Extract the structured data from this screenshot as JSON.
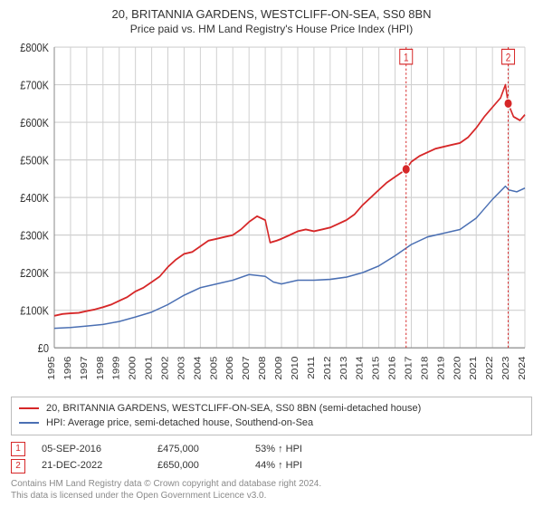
{
  "title": "20, BRITANNIA GARDENS, WESTCLIFF-ON-SEA, SS0 8BN",
  "subtitle": "Price paid vs. HM Land Registry's House Price Index (HPI)",
  "chart": {
    "type": "line",
    "background_color": "#ffffff",
    "grid_color": "#d0d0d0",
    "axis_color": "#888888",
    "x": {
      "min": 1995,
      "max": 2024,
      "ticks": [
        1995,
        1996,
        1997,
        1998,
        1999,
        2000,
        2001,
        2002,
        2003,
        2004,
        2005,
        2006,
        2007,
        2008,
        2009,
        2010,
        2011,
        2012,
        2013,
        2014,
        2015,
        2016,
        2017,
        2018,
        2019,
        2020,
        2021,
        2022,
        2023,
        2024
      ]
    },
    "y": {
      "min": 0,
      "max": 800000,
      "ticks": [
        0,
        100000,
        200000,
        300000,
        400000,
        500000,
        600000,
        700000,
        800000
      ],
      "tick_labels": [
        "£0",
        "£100K",
        "£200K",
        "£300K",
        "£400K",
        "£500K",
        "£600K",
        "£700K",
        "£800K"
      ]
    },
    "series": [
      {
        "name": "property",
        "color": "#d62728",
        "width": 1.6,
        "legend": "20, BRITANNIA GARDENS, WESTCLIFF-ON-SEA, SS0 8BN (semi-detached house)",
        "data": [
          [
            1995,
            85000
          ],
          [
            1995.5,
            90000
          ],
          [
            1996,
            92000
          ],
          [
            1996.5,
            93000
          ],
          [
            1997,
            98000
          ],
          [
            1997.5,
            102000
          ],
          [
            1998,
            108000
          ],
          [
            1998.5,
            115000
          ],
          [
            1999,
            125000
          ],
          [
            1999.5,
            135000
          ],
          [
            2000,
            150000
          ],
          [
            2000.5,
            160000
          ],
          [
            2001,
            175000
          ],
          [
            2001.5,
            190000
          ],
          [
            2002,
            215000
          ],
          [
            2002.5,
            235000
          ],
          [
            2003,
            250000
          ],
          [
            2003.5,
            255000
          ],
          [
            2004,
            270000
          ],
          [
            2004.5,
            285000
          ],
          [
            2005,
            290000
          ],
          [
            2005.5,
            295000
          ],
          [
            2006,
            300000
          ],
          [
            2006.5,
            315000
          ],
          [
            2007,
            335000
          ],
          [
            2007.5,
            350000
          ],
          [
            2008,
            340000
          ],
          [
            2008.3,
            280000
          ],
          [
            2008.7,
            285000
          ],
          [
            2009,
            290000
          ],
          [
            2009.5,
            300000
          ],
          [
            2010,
            310000
          ],
          [
            2010.5,
            315000
          ],
          [
            2011,
            310000
          ],
          [
            2011.5,
            315000
          ],
          [
            2012,
            320000
          ],
          [
            2012.5,
            330000
          ],
          [
            2013,
            340000
          ],
          [
            2013.5,
            355000
          ],
          [
            2014,
            380000
          ],
          [
            2014.5,
            400000
          ],
          [
            2015,
            420000
          ],
          [
            2015.5,
            440000
          ],
          [
            2016,
            455000
          ],
          [
            2016.68,
            475000
          ],
          [
            2017,
            495000
          ],
          [
            2017.5,
            510000
          ],
          [
            2018,
            520000
          ],
          [
            2018.5,
            530000
          ],
          [
            2019,
            535000
          ],
          [
            2019.5,
            540000
          ],
          [
            2020,
            545000
          ],
          [
            2020.5,
            560000
          ],
          [
            2021,
            585000
          ],
          [
            2021.5,
            615000
          ],
          [
            2022,
            640000
          ],
          [
            2022.5,
            665000
          ],
          [
            2022.8,
            700000
          ],
          [
            2022.97,
            650000
          ],
          [
            2023.3,
            615000
          ],
          [
            2023.7,
            605000
          ],
          [
            2024,
            620000
          ]
        ]
      },
      {
        "name": "hpi",
        "color": "#4a6fb3",
        "width": 1.3,
        "legend": "HPI: Average price, semi-detached house, Southend-on-Sea",
        "data": [
          [
            1995,
            52000
          ],
          [
            1996,
            54000
          ],
          [
            1997,
            58000
          ],
          [
            1998,
            62000
          ],
          [
            1999,
            70000
          ],
          [
            2000,
            82000
          ],
          [
            2001,
            95000
          ],
          [
            2002,
            115000
          ],
          [
            2003,
            140000
          ],
          [
            2004,
            160000
          ],
          [
            2005,
            170000
          ],
          [
            2006,
            180000
          ],
          [
            2007,
            195000
          ],
          [
            2008,
            190000
          ],
          [
            2008.5,
            175000
          ],
          [
            2009,
            170000
          ],
          [
            2010,
            180000
          ],
          [
            2011,
            180000
          ],
          [
            2012,
            182000
          ],
          [
            2013,
            188000
          ],
          [
            2014,
            200000
          ],
          [
            2015,
            218000
          ],
          [
            2016,
            245000
          ],
          [
            2017,
            275000
          ],
          [
            2018,
            295000
          ],
          [
            2019,
            305000
          ],
          [
            2020,
            315000
          ],
          [
            2021,
            345000
          ],
          [
            2022,
            395000
          ],
          [
            2022.8,
            430000
          ],
          [
            2023,
            420000
          ],
          [
            2023.5,
            415000
          ],
          [
            2024,
            425000
          ]
        ]
      }
    ],
    "markers": [
      {
        "id": "1",
        "x": 2016.68,
        "y": 475000
      },
      {
        "id": "2",
        "x": 2022.97,
        "y": 650000
      }
    ]
  },
  "sales": [
    {
      "id": "1",
      "date": "05-SEP-2016",
      "price": "£475,000",
      "pct": "53% ↑ HPI"
    },
    {
      "id": "2",
      "date": "21-DEC-2022",
      "price": "£650,000",
      "pct": "44% ↑ HPI"
    }
  ],
  "footer": {
    "line1": "Contains HM Land Registry data © Crown copyright and database right 2024.",
    "line2": "This data is licensed under the Open Government Licence v3.0."
  }
}
